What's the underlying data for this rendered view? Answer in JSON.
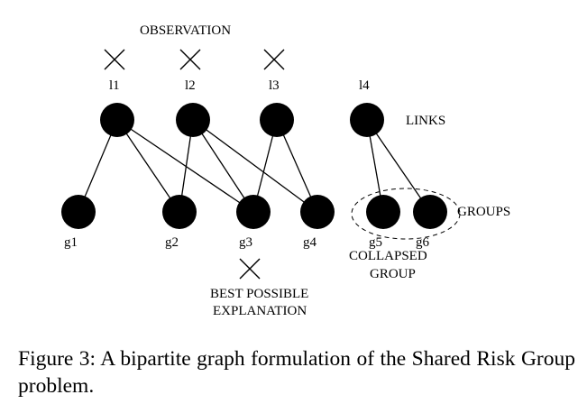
{
  "figure": {
    "observation_label": "OBSERVATION",
    "links_label": "LINKS",
    "groups_label": "GROUPS",
    "collapsed_group_label_line1": "COLLAPSED",
    "collapsed_group_label_line2": "GROUP",
    "best_explanation_label_line1": "BEST POSSIBLE",
    "best_explanation_label_line2": "EXPLANATION",
    "links": [
      {
        "id": "l1",
        "label": "l1",
        "observed": true
      },
      {
        "id": "l2",
        "label": "l2",
        "observed": true
      },
      {
        "id": "l3",
        "label": "l3",
        "observed": true
      },
      {
        "id": "l4",
        "label": "l4",
        "observed": false
      }
    ],
    "groups": [
      {
        "id": "g1",
        "label": "g1",
        "best_explanation": false,
        "collapsed": false
      },
      {
        "id": "g2",
        "label": "g2",
        "best_explanation": false,
        "collapsed": false
      },
      {
        "id": "g3",
        "label": "g3",
        "best_explanation": true,
        "collapsed": false
      },
      {
        "id": "g4",
        "label": "g4",
        "best_explanation": false,
        "collapsed": false
      },
      {
        "id": "g5",
        "label": "g5",
        "best_explanation": false,
        "collapsed": true
      },
      {
        "id": "g6",
        "label": "g6",
        "best_explanation": false,
        "collapsed": true
      }
    ],
    "edges": [
      [
        "l1",
        "g1"
      ],
      [
        "l1",
        "g2"
      ],
      [
        "l1",
        "g3"
      ],
      [
        "l2",
        "g2"
      ],
      [
        "l2",
        "g3"
      ],
      [
        "l2",
        "g4"
      ],
      [
        "l3",
        "g3"
      ],
      [
        "l3",
        "g4"
      ],
      [
        "l4",
        "g5"
      ],
      [
        "l4",
        "g6"
      ]
    ]
  },
  "caption": "Figure 3:  A bipartite graph formulation of the Shared Risk Group problem."
}
